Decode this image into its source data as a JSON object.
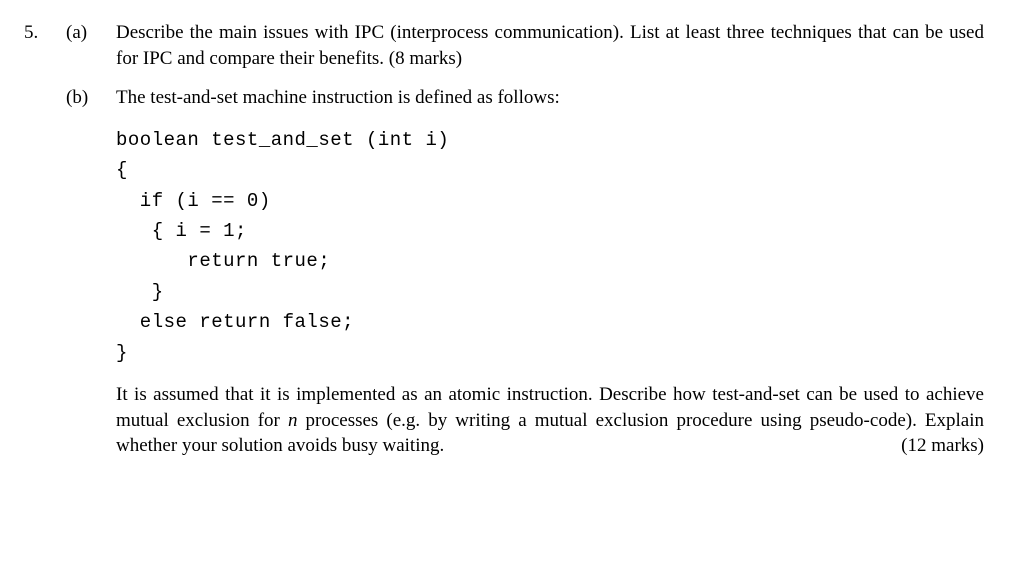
{
  "question": {
    "number": "5.",
    "parts": [
      {
        "label": "(a)",
        "text": "Describe the main issues with IPC (interprocess communication). List at least three techniques that can be used for IPC and compare their benefits. (8 marks)"
      },
      {
        "label": "(b)",
        "intro": "The test-and-set machine instruction is defined as follows:",
        "code_lines": [
          "boolean test_and_set (int i)",
          "{",
          "  if (i == 0)",
          "   { i = 1;",
          "      return true;",
          "   }",
          "  else return false;",
          "}"
        ],
        "para_before_n": "It is assumed that it is implemented as an atomic instruction. Describe how test-and-set can be used to achieve mutual exclusion for ",
        "n_var": "n",
        "para_after_n": " processes (e.g. by writing a mutual exclusion procedure using pseudo-code). Explain whether your solution avoids busy waiting.",
        "marks": "(12 marks)"
      }
    ]
  },
  "style": {
    "text_color": "#000000",
    "background": "#ffffff",
    "body_fontsize": 19,
    "code_fontsize": 19
  }
}
